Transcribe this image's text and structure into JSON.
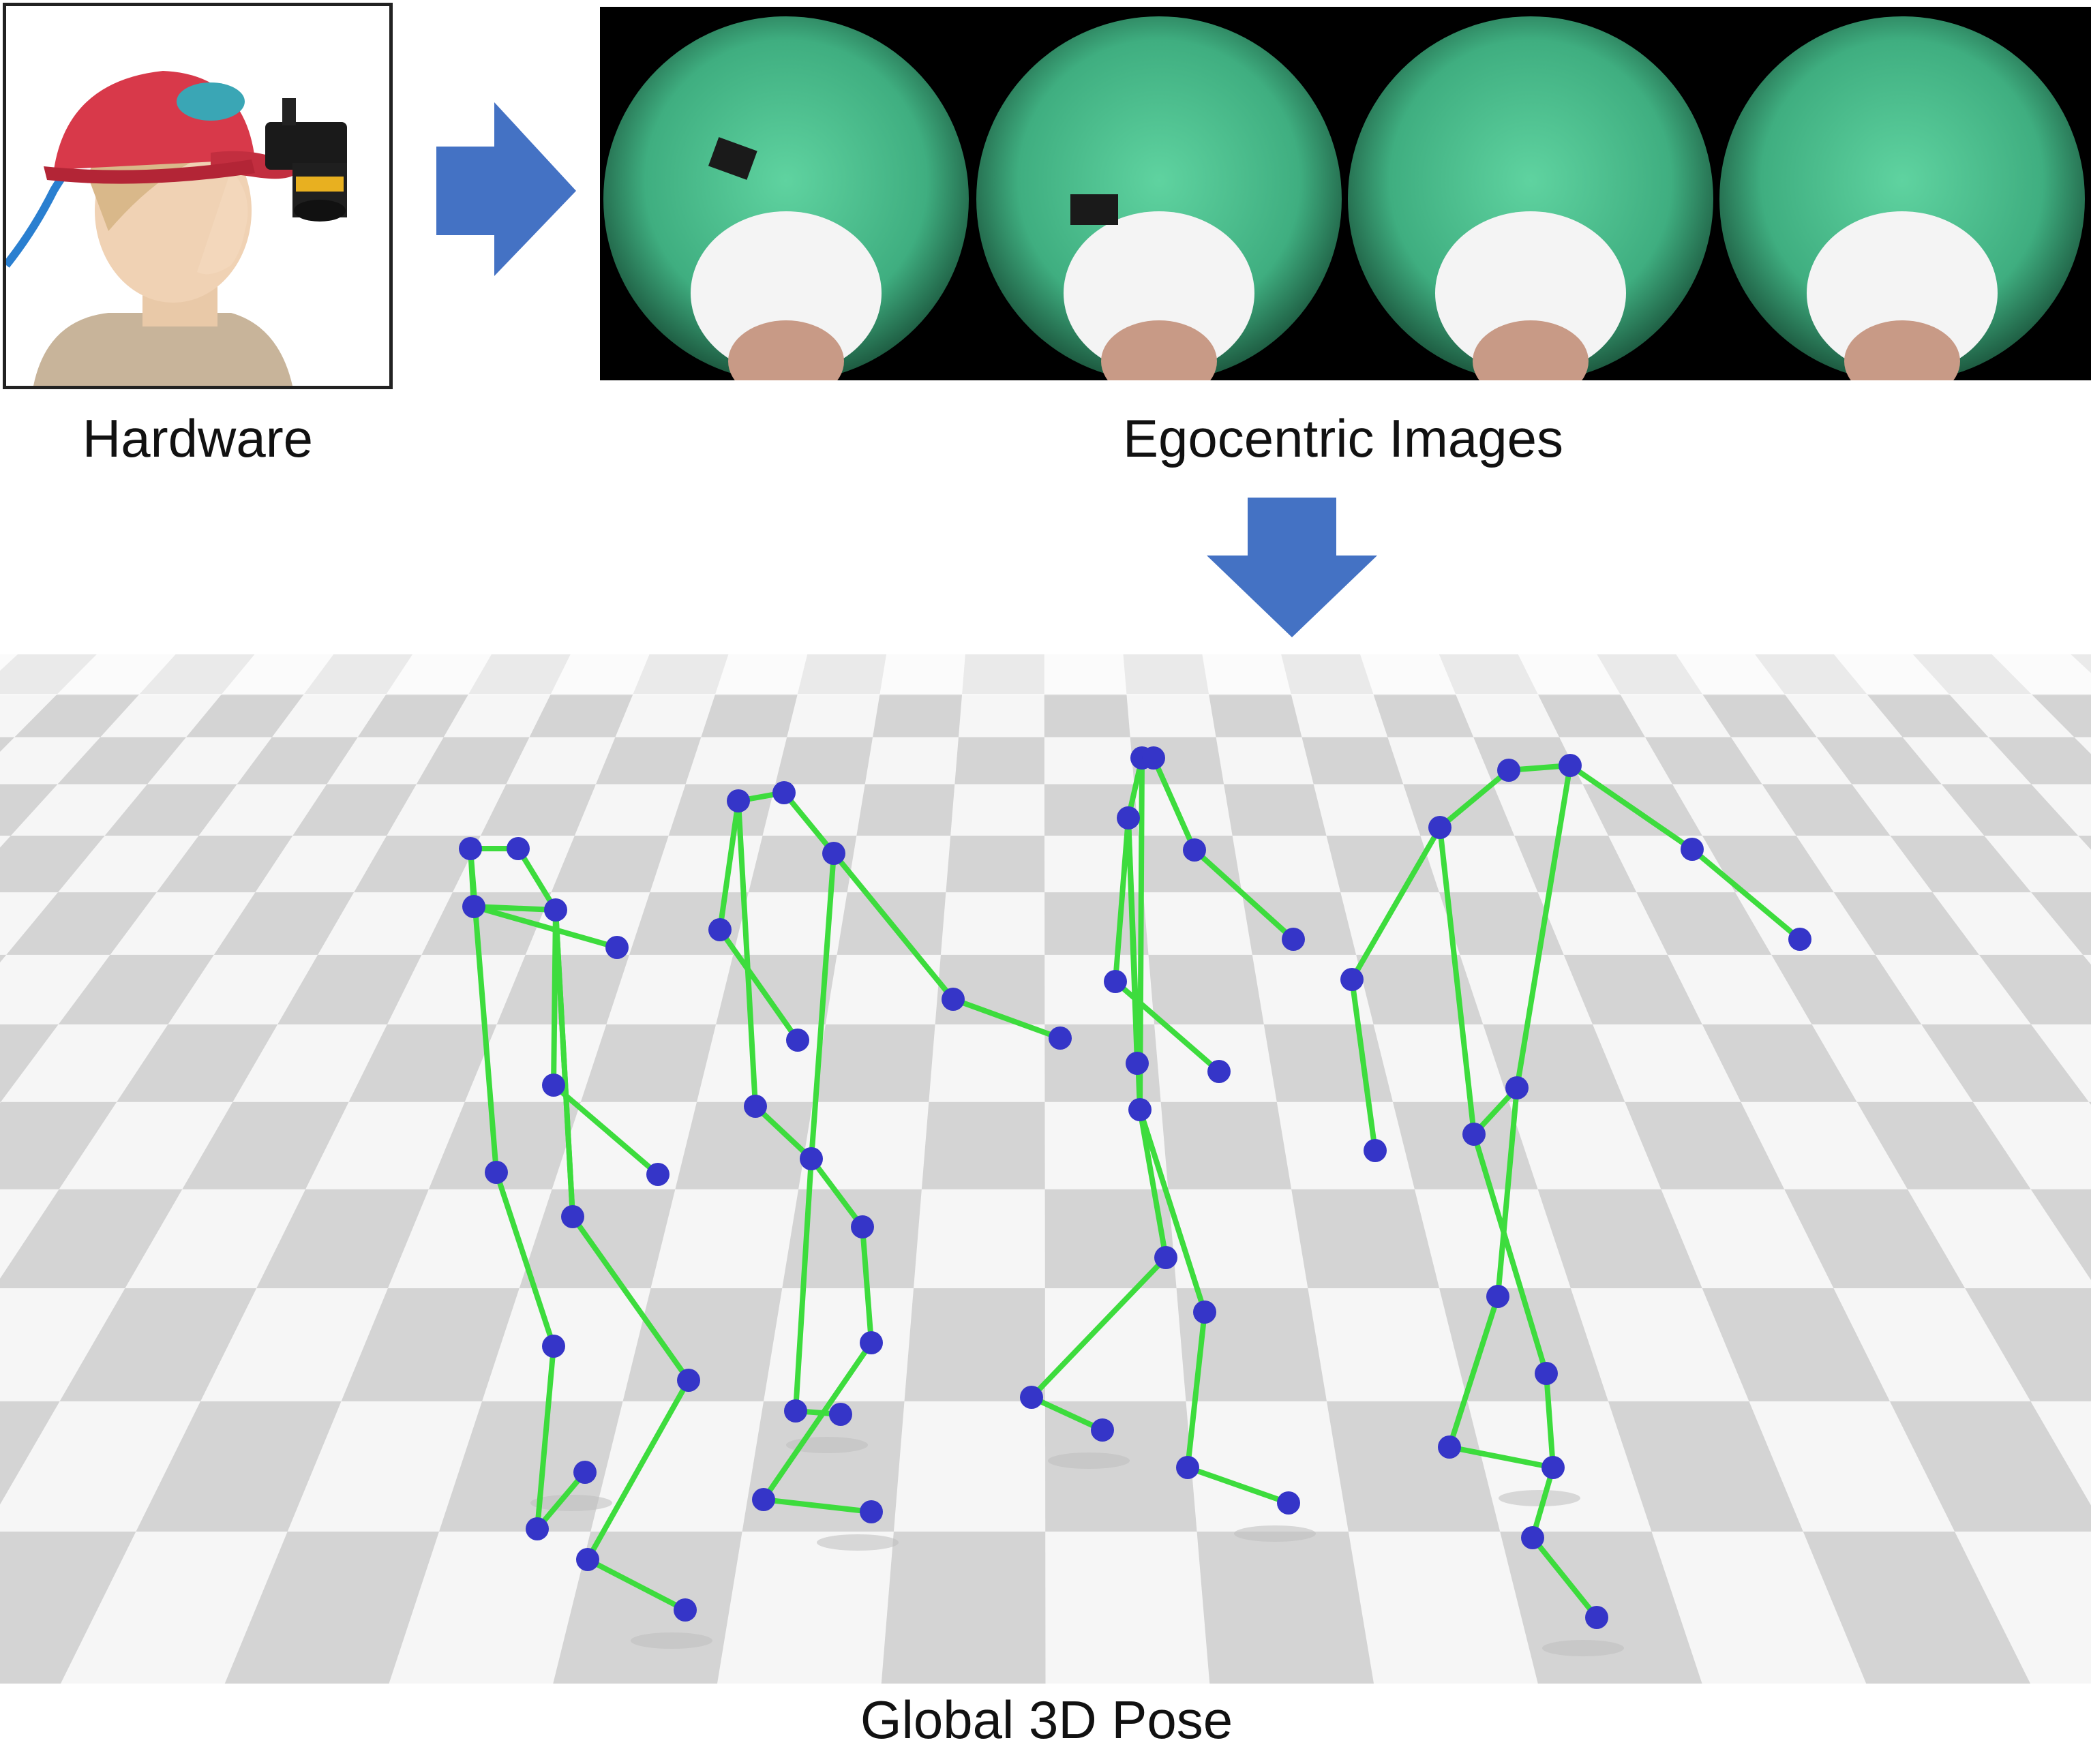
{
  "captions": {
    "hardware": "Hardware",
    "egocentric": "Egocentric Images",
    "global_pose": "Global 3D Pose"
  },
  "colors": {
    "arrow": "#4472c4",
    "bone": "#3ddc3d",
    "joint": "#3535c8",
    "fisheye_green": "#3fae80",
    "cap_red": "#d8394a",
    "floor_light": "#f6f6f6",
    "floor_dark": "#d4d4d4"
  },
  "icons": {
    "flow_arrow_right": "right-arrow-icon",
    "flow_arrow_down": "down-arrow-icon"
  },
  "egocentric_frames": 4,
  "skeletons": 4
}
